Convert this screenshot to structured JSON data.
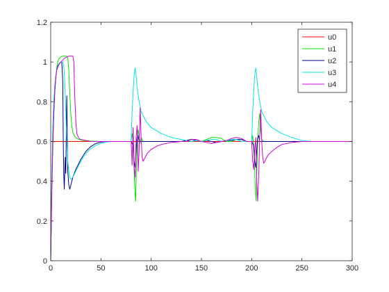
{
  "chart_data": {
    "type": "line",
    "title": "",
    "xlabel": "",
    "ylabel": "",
    "xlim": [
      0,
      300
    ],
    "ylim": [
      0,
      1.2
    ],
    "x_ticks": [
      0,
      50,
      100,
      150,
      200,
      250,
      300
    ],
    "x_tick_labels": [
      "0",
      "50",
      "100",
      "150",
      "200",
      "250",
      "300"
    ],
    "y_ticks": [
      0,
      0.2,
      0.4,
      0.6,
      0.8,
      1.0,
      1.2
    ],
    "y_tick_labels": [
      "0",
      "0.2",
      "0.4",
      "0.6",
      "0.8",
      "1",
      "1.2"
    ],
    "grid": false,
    "legend_position": "top-right",
    "series": [
      {
        "name": "u0",
        "color": "#ff0000",
        "points": [
          [
            0,
            0.6
          ],
          [
            300,
            0.6
          ]
        ]
      },
      {
        "name": "u1",
        "color": "#00e600",
        "points": [
          [
            0,
            0.0
          ],
          [
            1,
            0.3
          ],
          [
            2,
            0.55
          ],
          [
            3,
            0.72
          ],
          [
            4,
            0.84
          ],
          [
            5,
            0.92
          ],
          [
            6,
            0.97
          ],
          [
            7,
            1.0
          ],
          [
            8,
            1.015
          ],
          [
            10,
            1.025
          ],
          [
            12,
            1.03
          ],
          [
            14,
            1.03
          ],
          [
            16,
            1.03
          ],
          [
            17,
            1.02
          ],
          [
            18,
            0.96
          ],
          [
            19,
            0.84
          ],
          [
            20,
            0.74
          ],
          [
            21,
            0.68
          ],
          [
            22,
            0.645
          ],
          [
            24,
            0.625
          ],
          [
            27,
            0.612
          ],
          [
            32,
            0.605
          ],
          [
            40,
            0.602
          ],
          [
            50,
            0.6
          ],
          [
            80,
            0.6
          ],
          [
            81,
            0.64
          ],
          [
            82,
            0.6
          ],
          [
            83,
            0.45
          ],
          [
            84,
            0.33
          ],
          [
            84.5,
            0.3
          ],
          [
            85,
            0.42
          ],
          [
            86,
            0.58
          ],
          [
            87,
            0.66
          ],
          [
            88,
            0.63
          ],
          [
            89,
            0.59
          ],
          [
            90,
            0.62
          ],
          [
            92,
            0.6
          ],
          [
            95,
            0.6
          ],
          [
            130,
            0.6
          ],
          [
            135,
            0.605
          ],
          [
            140,
            0.612
          ],
          [
            145,
            0.605
          ],
          [
            150,
            0.6
          ],
          [
            155,
            0.61
          ],
          [
            160,
            0.62
          ],
          [
            165,
            0.62
          ],
          [
            170,
            0.615
          ],
          [
            175,
            0.6
          ],
          [
            180,
            0.6
          ],
          [
            185,
            0.612
          ],
          [
            190,
            0.6
          ],
          [
            195,
            0.6
          ],
          [
            200,
            0.6
          ],
          [
            201,
            0.63
          ],
          [
            202,
            0.58
          ],
          [
            203,
            0.45
          ],
          [
            204,
            0.33
          ],
          [
            204.5,
            0.3
          ],
          [
            205,
            0.42
          ],
          [
            206,
            0.6
          ],
          [
            207,
            0.7
          ],
          [
            208,
            0.74
          ],
          [
            209,
            0.66
          ],
          [
            210,
            0.61
          ],
          [
            212,
            0.6
          ],
          [
            300,
            0.6
          ]
        ]
      },
      {
        "name": "u2",
        "color": "#00008b",
        "points": [
          [
            0,
            0.0
          ],
          [
            1,
            0.35
          ],
          [
            2,
            0.58
          ],
          [
            3,
            0.74
          ],
          [
            4,
            0.85
          ],
          [
            5,
            0.92
          ],
          [
            6,
            0.96
          ],
          [
            7,
            0.98
          ],
          [
            8,
            0.99
          ],
          [
            10,
            1.0
          ],
          [
            11,
            1.0
          ],
          [
            12,
            0.9
          ],
          [
            12.5,
            0.6
          ],
          [
            13,
            0.43
          ],
          [
            13.5,
            0.36
          ],
          [
            14,
            0.45
          ],
          [
            14.5,
            0.52
          ],
          [
            15,
            0.44
          ],
          [
            16,
            0.83
          ],
          [
            16.5,
            0.6
          ],
          [
            17,
            0.45
          ],
          [
            18,
            0.38
          ],
          [
            19,
            0.36
          ],
          [
            20,
            0.38
          ],
          [
            22,
            0.42
          ],
          [
            25,
            0.46
          ],
          [
            30,
            0.51
          ],
          [
            35,
            0.55
          ],
          [
            40,
            0.575
          ],
          [
            45,
            0.59
          ],
          [
            50,
            0.597
          ],
          [
            55,
            0.6
          ],
          [
            80,
            0.6
          ],
          [
            82,
            0.58
          ],
          [
            83,
            0.5
          ],
          [
            84,
            0.47
          ],
          [
            85,
            0.55
          ],
          [
            86,
            0.62
          ],
          [
            87,
            0.63
          ],
          [
            88,
            0.6
          ],
          [
            90,
            0.6
          ],
          [
            130,
            0.6
          ],
          [
            135,
            0.605
          ],
          [
            140,
            0.61
          ],
          [
            145,
            0.605
          ],
          [
            150,
            0.6
          ],
          [
            155,
            0.605
          ],
          [
            160,
            0.6
          ],
          [
            165,
            0.595
          ],
          [
            170,
            0.6
          ],
          [
            175,
            0.605
          ],
          [
            180,
            0.605
          ],
          [
            185,
            0.61
          ],
          [
            190,
            0.61
          ],
          [
            195,
            0.6
          ],
          [
            200,
            0.6
          ],
          [
            202,
            0.58
          ],
          [
            203,
            0.5
          ],
          [
            204,
            0.47
          ],
          [
            205,
            0.55
          ],
          [
            206,
            0.62
          ],
          [
            207,
            0.63
          ],
          [
            208,
            0.6
          ],
          [
            210,
            0.6
          ],
          [
            300,
            0.6
          ]
        ]
      },
      {
        "name": "u3",
        "color": "#00e6e6",
        "points": [
          [
            0,
            0.0
          ],
          [
            1,
            0.4
          ],
          [
            2,
            0.66
          ],
          [
            3,
            0.8
          ],
          [
            4,
            0.88
          ],
          [
            5,
            0.93
          ],
          [
            6,
            0.96
          ],
          [
            8,
            0.99
          ],
          [
            10,
            1.0
          ],
          [
            12,
            1.0
          ],
          [
            13,
            0.98
          ],
          [
            14,
            0.9
          ],
          [
            15,
            0.75
          ],
          [
            16,
            0.6
          ],
          [
            17,
            0.5
          ],
          [
            18,
            0.45
          ],
          [
            19,
            0.42
          ],
          [
            20,
            0.41
          ],
          [
            22,
            0.42
          ],
          [
            25,
            0.45
          ],
          [
            30,
            0.5
          ],
          [
            35,
            0.54
          ],
          [
            40,
            0.565
          ],
          [
            45,
            0.58
          ],
          [
            50,
            0.59
          ],
          [
            55,
            0.597
          ],
          [
            60,
            0.6
          ],
          [
            80,
            0.6
          ],
          [
            81,
            0.75
          ],
          [
            82,
            0.85
          ],
          [
            83,
            0.93
          ],
          [
            84,
            0.97
          ],
          [
            85,
            0.93
          ],
          [
            86,
            0.87
          ],
          [
            88,
            0.8
          ],
          [
            90,
            0.75
          ],
          [
            95,
            0.7
          ],
          [
            100,
            0.67
          ],
          [
            110,
            0.64
          ],
          [
            120,
            0.62
          ],
          [
            130,
            0.61
          ],
          [
            135,
            0.605
          ],
          [
            140,
            0.6
          ],
          [
            145,
            0.605
          ],
          [
            150,
            0.6
          ],
          [
            155,
            0.605
          ],
          [
            160,
            0.61
          ],
          [
            165,
            0.61
          ],
          [
            170,
            0.6
          ],
          [
            175,
            0.605
          ],
          [
            180,
            0.61
          ],
          [
            185,
            0.61
          ],
          [
            190,
            0.6
          ],
          [
            195,
            0.6
          ],
          [
            200,
            0.6
          ],
          [
            201,
            0.75
          ],
          [
            202,
            0.85
          ],
          [
            203,
            0.93
          ],
          [
            204,
            0.97
          ],
          [
            205,
            0.93
          ],
          [
            206,
            0.87
          ],
          [
            208,
            0.8
          ],
          [
            210,
            0.75
          ],
          [
            215,
            0.7
          ],
          [
            220,
            0.67
          ],
          [
            230,
            0.64
          ],
          [
            240,
            0.62
          ],
          [
            250,
            0.605
          ],
          [
            260,
            0.6
          ],
          [
            300,
            0.6
          ]
        ]
      },
      {
        "name": "u4",
        "color": "#d400d4",
        "points": [
          [
            0,
            0.0
          ],
          [
            1,
            0.35
          ],
          [
            2,
            0.58
          ],
          [
            3,
            0.74
          ],
          [
            4,
            0.85
          ],
          [
            5,
            0.92
          ],
          [
            6,
            0.96
          ],
          [
            8,
            0.985
          ],
          [
            10,
            1.0
          ],
          [
            12,
            1.01
          ],
          [
            14,
            1.02
          ],
          [
            16,
            1.025
          ],
          [
            18,
            1.03
          ],
          [
            20,
            1.03
          ],
          [
            22,
            1.03
          ],
          [
            23,
            1.0
          ],
          [
            24,
            0.82
          ],
          [
            25,
            0.7
          ],
          [
            26,
            0.64
          ],
          [
            28,
            0.615
          ],
          [
            30,
            0.61
          ],
          [
            35,
            0.605
          ],
          [
            40,
            0.6
          ],
          [
            80,
            0.6
          ],
          [
            80.5,
            0.55
          ],
          [
            81,
            0.48
          ],
          [
            81.5,
            0.57
          ],
          [
            82,
            0.67
          ],
          [
            82.5,
            0.58
          ],
          [
            83,
            0.47
          ],
          [
            84,
            0.42
          ],
          [
            84.5,
            0.5
          ],
          [
            85,
            0.62
          ],
          [
            86,
            0.68
          ],
          [
            86.5,
            0.6
          ],
          [
            87,
            0.45
          ],
          [
            88,
            0.55
          ],
          [
            89,
            0.77
          ],
          [
            90,
            0.62
          ],
          [
            91,
            0.52
          ],
          [
            92,
            0.5
          ],
          [
            94,
            0.52
          ],
          [
            96,
            0.54
          ],
          [
            100,
            0.56
          ],
          [
            105,
            0.575
          ],
          [
            110,
            0.585
          ],
          [
            120,
            0.595
          ],
          [
            130,
            0.6
          ],
          [
            135,
            0.6
          ],
          [
            140,
            0.61
          ],
          [
            145,
            0.61
          ],
          [
            150,
            0.6
          ],
          [
            155,
            0.595
          ],
          [
            160,
            0.59
          ],
          [
            165,
            0.595
          ],
          [
            170,
            0.6
          ],
          [
            175,
            0.605
          ],
          [
            180,
            0.615
          ],
          [
            185,
            0.62
          ],
          [
            190,
            0.615
          ],
          [
            195,
            0.6
          ],
          [
            200,
            0.6
          ],
          [
            201,
            0.5
          ],
          [
            202,
            0.46
          ],
          [
            203,
            0.55
          ],
          [
            204,
            0.62
          ],
          [
            205,
            0.4
          ],
          [
            206,
            0.3
          ],
          [
            207,
            0.43
          ],
          [
            208,
            0.62
          ],
          [
            209,
            0.76
          ],
          [
            210,
            0.6
          ],
          [
            211,
            0.52
          ],
          [
            212,
            0.49
          ],
          [
            214,
            0.51
          ],
          [
            216,
            0.53
          ],
          [
            220,
            0.55
          ],
          [
            225,
            0.57
          ],
          [
            230,
            0.585
          ],
          [
            240,
            0.595
          ],
          [
            250,
            0.6
          ],
          [
            300,
            0.6
          ]
        ]
      }
    ]
  }
}
